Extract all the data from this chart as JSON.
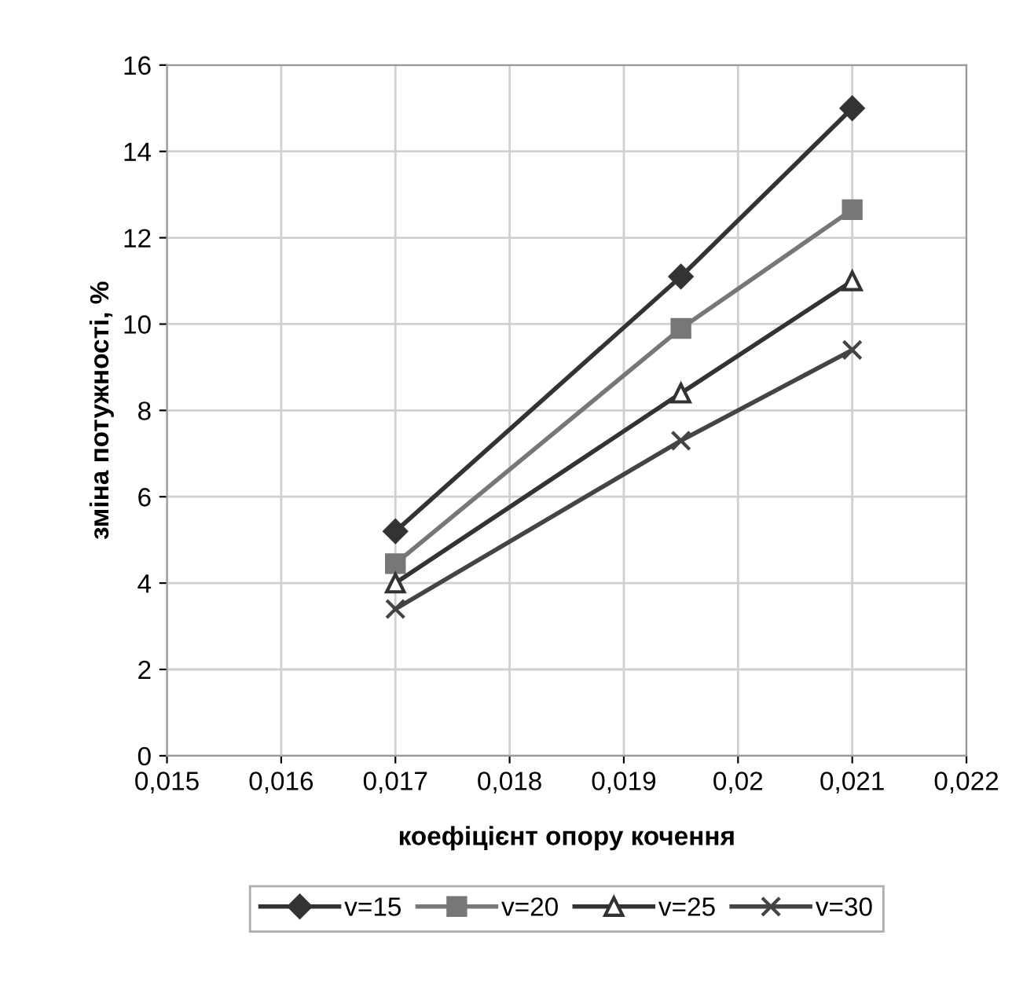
{
  "chart_data": {
    "type": "line",
    "xlabel": "коефіцієнт опору кочення",
    "ylabel": "зміна потужності, %",
    "x": [
      0.017,
      0.0195,
      0.021
    ],
    "series": [
      {
        "name": "v=15",
        "color": "#333333",
        "marker": "diamond",
        "values": [
          5.2,
          11.1,
          15.0
        ]
      },
      {
        "name": "v=20",
        "color": "#777777",
        "marker": "square",
        "values": [
          4.45,
          9.9,
          12.65
        ]
      },
      {
        "name": "v=25",
        "color": "#333333",
        "marker": "triangle",
        "values": [
          4.0,
          8.4,
          11.0
        ]
      },
      {
        "name": "v=30",
        "color": "#444444",
        "marker": "cross",
        "values": [
          3.4,
          7.3,
          9.4
        ]
      }
    ],
    "xlim": [
      0.015,
      0.022
    ],
    "xticks": [
      {
        "value": 0.015,
        "label": "0,015"
      },
      {
        "value": 0.016,
        "label": "0,016"
      },
      {
        "value": 0.017,
        "label": "0,017"
      },
      {
        "value": 0.018,
        "label": "0,018"
      },
      {
        "value": 0.019,
        "label": "0,019"
      },
      {
        "value": 0.02,
        "label": "0,02"
      },
      {
        "value": 0.021,
        "label": "0,021"
      },
      {
        "value": 0.022,
        "label": "0,022"
      }
    ],
    "ylim": [
      0,
      16
    ],
    "yticks": [
      0,
      2,
      4,
      6,
      8,
      10,
      12,
      14,
      16
    ],
    "grid": true,
    "legend": "bottom",
    "line_style": "solid"
  }
}
